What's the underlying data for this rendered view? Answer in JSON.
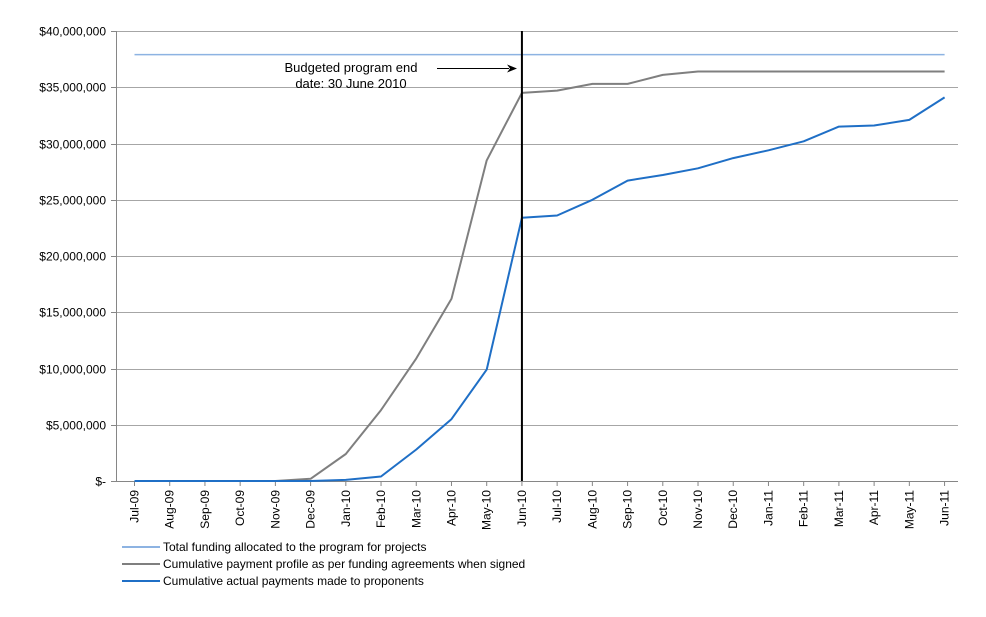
{
  "chart_data": {
    "type": "line",
    "title": "",
    "xlabel": "",
    "ylabel": "",
    "ylim": [
      0,
      40000000
    ],
    "grid": "horizontal",
    "legend_position": "bottom-left",
    "y_ticks": [
      0,
      5000000,
      10000000,
      15000000,
      20000000,
      25000000,
      30000000,
      35000000,
      40000000
    ],
    "y_tick_labels": [
      "$-",
      "$5,000,000",
      "$10,000,000",
      "$15,000,000",
      "$20,000,000",
      "$25,000,000",
      "$30,000,000",
      "$35,000,000",
      "$40,000,000"
    ],
    "categories": [
      "Jul-09",
      "Aug-09",
      "Sep-09",
      "Oct-09",
      "Nov-09",
      "Dec-09",
      "Jan-10",
      "Feb-10",
      "Mar-10",
      "Apr-10",
      "May-10",
      "Jun-10",
      "Jul-10",
      "Aug-10",
      "Sep-10",
      "Oct-10",
      "Nov-10",
      "Dec-10",
      "Jan-11",
      "Feb-11",
      "Mar-11",
      "Apr-11",
      "May-11",
      "Jun-11"
    ],
    "series": [
      {
        "name": "Total funding allocated to the program for projects",
        "color": "#8db3e2",
        "values": [
          37900000,
          37900000,
          37900000,
          37900000,
          37900000,
          37900000,
          37900000,
          37900000,
          37900000,
          37900000,
          37900000,
          37900000,
          37900000,
          37900000,
          37900000,
          37900000,
          37900000,
          37900000,
          37900000,
          37900000,
          37900000,
          37900000,
          37900000,
          37900000
        ]
      },
      {
        "name": "Cumulative payment profile as per funding agreements when signed",
        "color": "#7f7f7f",
        "values": [
          0,
          0,
          0,
          0,
          0,
          200000,
          2400000,
          6300000,
          10900000,
          16200000,
          28500000,
          34500000,
          34700000,
          35300000,
          35300000,
          36100000,
          36400000,
          36400000,
          36400000,
          36400000,
          36400000,
          36400000,
          36400000,
          36400000
        ]
      },
      {
        "name": "Cumulative actual payments made to proponents",
        "color": "#1f6fc6",
        "values": [
          0,
          0,
          0,
          0,
          0,
          0,
          100000,
          400000,
          2800000,
          5500000,
          9900000,
          23400000,
          23600000,
          25000000,
          26700000,
          27200000,
          27800000,
          28700000,
          29400000,
          30200000,
          31500000,
          31600000,
          32100000,
          34100000
        ]
      }
    ],
    "marker": {
      "category": "Jun-10",
      "color": "#000000",
      "annotation_lines": [
        "Budgeted program end",
        "date: 30 June 2010"
      ]
    }
  }
}
